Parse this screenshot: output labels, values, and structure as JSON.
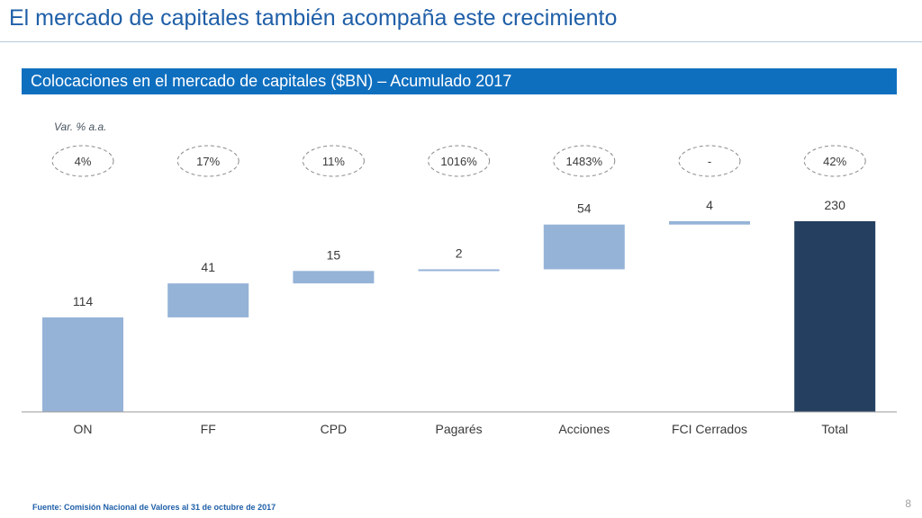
{
  "slide": {
    "title": "El mercado de capitales también acompaña este crecimiento",
    "page_number": "8"
  },
  "section": {
    "header": "Colocaciones en el mercado de capitales ($BN) – Acumulado 2017"
  },
  "footer": {
    "source": "Fuente: Comisión Nacional de Valores al 31 de octubre de 2017"
  },
  "colors": {
    "title": "#1f5fa8",
    "header_bar": "#0f6fbf",
    "increment_bar": "#95b3d7",
    "total_bar": "#243f60",
    "bubble_border": "#8a8a8a"
  },
  "chart_data": {
    "type": "bar",
    "subtype": "waterfall",
    "categories": [
      "ON",
      "FF",
      "CPD",
      "Pagarés",
      "Acciones",
      "FCI Cerrados",
      "Total"
    ],
    "values": [
      114,
      41,
      15,
      2,
      54,
      4,
      230
    ],
    "is_total": [
      false,
      false,
      false,
      false,
      false,
      false,
      true
    ],
    "value_labels": [
      "114",
      "41",
      "15",
      "2",
      "54",
      "4",
      "230"
    ],
    "annotation_label": "Var. % a.a.",
    "annotations": [
      "4%",
      "17%",
      "11%",
      "1016%",
      "1483%",
      "-",
      "42%"
    ],
    "ylim": [
      0,
      230
    ],
    "grid": false,
    "legend": "none"
  }
}
